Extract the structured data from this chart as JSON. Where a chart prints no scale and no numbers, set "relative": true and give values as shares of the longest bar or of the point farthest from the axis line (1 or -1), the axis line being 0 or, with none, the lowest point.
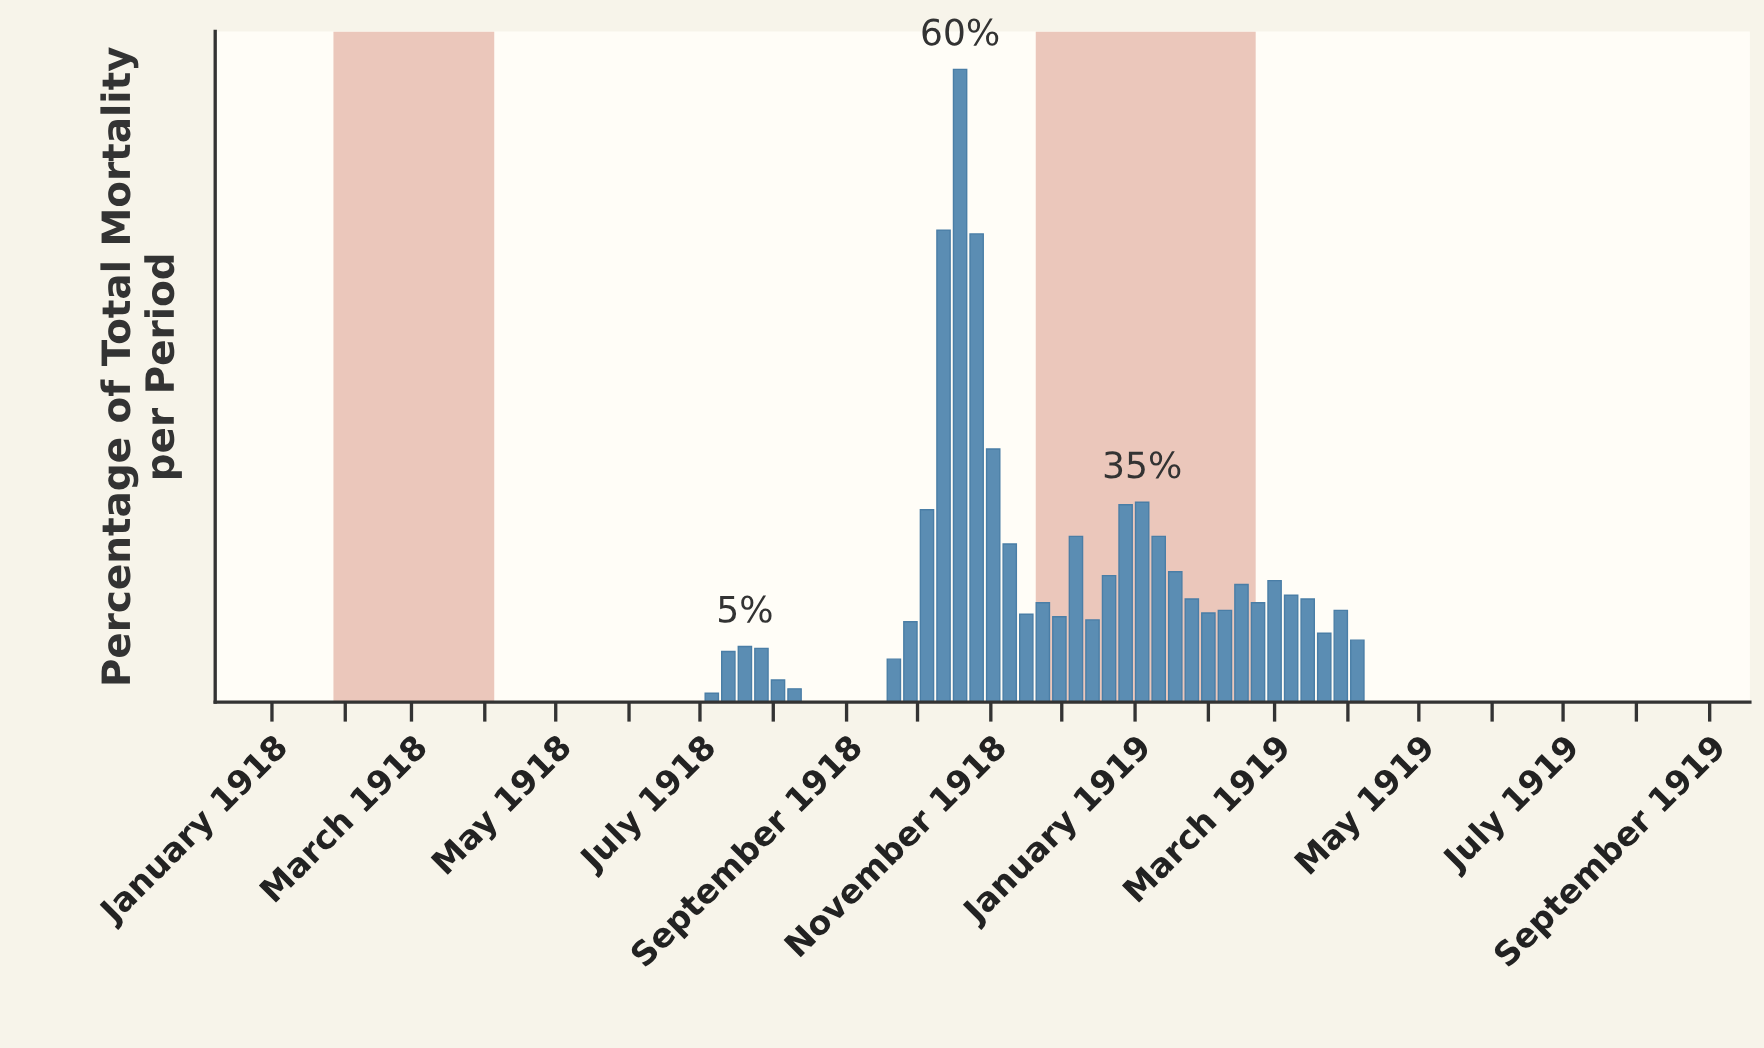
{
  "chart_data": {
    "type": "bar",
    "relative": true,
    "ylabel": "Percentage of Total Mortality\nper Period",
    "x": [
      "1918-07-06",
      "1918-07-13",
      "1918-07-20",
      "1918-07-27",
      "1918-08-03",
      "1918-08-10",
      "1918-09-21",
      "1918-09-28",
      "1918-10-05",
      "1918-10-12",
      "1918-10-19",
      "1918-10-26",
      "1918-11-02",
      "1918-11-09",
      "1918-11-16",
      "1918-11-23",
      "1918-11-30",
      "1918-12-07",
      "1918-12-14",
      "1918-12-21",
      "1918-12-28",
      "1919-01-04",
      "1919-01-11",
      "1919-01-18",
      "1919-01-25",
      "1919-02-01",
      "1919-02-08",
      "1919-02-15",
      "1919-02-22",
      "1919-03-01",
      "1919-03-08",
      "1919-03-15",
      "1919-03-22",
      "1919-03-29",
      "1919-04-05"
    ],
    "series": [
      {
        "color": "#5b8db3",
        "values": [
          0.014,
          0.08,
          0.088,
          0.085,
          0.035,
          0.021,
          0.068,
          0.127,
          0.304,
          0.746,
          1,
          0.74,
          0.4,
          0.25,
          0.139,
          0.157,
          0.135,
          0.262,
          0.13,
          0.2,
          0.312,
          0.316,
          0.262,
          0.206,
          0.163,
          0.141,
          0.145,
          0.186,
          0.157,
          0.192,
          0.169,
          0.163,
          0.109,
          0.145,
          0.098
        ]
      }
    ],
    "xlim": [
      "1917-12-08",
      "1919-09-18"
    ],
    "xticks": [
      {
        "value": "1918-01",
        "label": "January 1918"
      },
      {
        "value": "1918-02",
        "label": null
      },
      {
        "value": "1918-03",
        "label": "March 1918"
      },
      {
        "value": "1918-04",
        "label": null
      },
      {
        "value": "1918-05",
        "label": "May 1918"
      },
      {
        "value": "1918-06",
        "label": null
      },
      {
        "value": "1918-07",
        "label": "July 1918"
      },
      {
        "value": "1918-08",
        "label": null
      },
      {
        "value": "1918-09",
        "label": "September 1918"
      },
      {
        "value": "1918-10",
        "label": null
      },
      {
        "value": "1918-11",
        "label": "November 1918"
      },
      {
        "value": "1918-12",
        "label": null
      },
      {
        "value": "1919-01",
        "label": "January 1919"
      },
      {
        "value": "1919-02",
        "label": null
      },
      {
        "value": "1919-03",
        "label": "March 1919"
      },
      {
        "value": "1919-04",
        "label": null
      },
      {
        "value": "1919-05",
        "label": "May 1919"
      },
      {
        "value": "1919-06",
        "label": null
      },
      {
        "value": "1919-07",
        "label": "July 1919"
      },
      {
        "value": "1919-08",
        "label": null
      },
      {
        "value": "1919-09",
        "label": "September 1919"
      }
    ],
    "bands": [
      {
        "axis": "x",
        "from": "1918-01-27",
        "to": "1918-04-05",
        "color": "#ebc7bb"
      },
      {
        "axis": "x",
        "from": "1918-11-20",
        "to": "1919-02-21",
        "color": "#ebc7bb"
      }
    ],
    "annotations": [
      {
        "text": "5%",
        "x": "1918-07-20",
        "y": 0.088
      },
      {
        "text": "60%",
        "x": "1918-10-19",
        "y": 1
      },
      {
        "text": "35%",
        "x": "1919-01-04",
        "y": 0.316
      }
    ],
    "grid": false,
    "legend": false
  }
}
